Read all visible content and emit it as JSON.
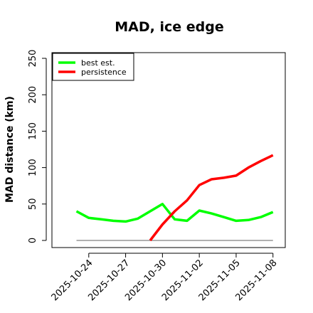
{
  "chart_data": {
    "type": "line",
    "title": "MAD, ice edge",
    "xlabel": "",
    "ylabel": "MAD distance (km)",
    "ylim": [
      0,
      250
    ],
    "yticks": [
      0,
      50,
      100,
      150,
      200,
      250
    ],
    "xlim": [
      "2025-10-21",
      "2025-11-09"
    ],
    "xticks": [
      "2025-10-24",
      "2025-10-27",
      "2025-10-30",
      "2025-11-02",
      "2025-11-05",
      "2025-11-08"
    ],
    "legend_position": "top-left",
    "series": [
      {
        "name": "best est.",
        "color": "#00ff00",
        "x": [
          "2025-10-23",
          "2025-10-24",
          "2025-10-25",
          "2025-10-26",
          "2025-10-27",
          "2025-10-28",
          "2025-10-29",
          "2025-10-30",
          "2025-10-31",
          "2025-11-01",
          "2025-11-02",
          "2025-11-03",
          "2025-11-04",
          "2025-11-05",
          "2025-11-06",
          "2025-11-07",
          "2025-11-08"
        ],
        "values": [
          40,
          31,
          29,
          27,
          26,
          30,
          40,
          50,
          29,
          27,
          41,
          37,
          32,
          27,
          28,
          32,
          39
        ]
      },
      {
        "name": "persistence",
        "color": "#ff0000",
        "x": [
          "2025-10-29",
          "2025-10-30",
          "2025-10-31",
          "2025-11-01",
          "2025-11-02",
          "2025-11-03",
          "2025-11-04",
          "2025-11-05",
          "2025-11-06",
          "2025-11-07",
          "2025-11-08"
        ],
        "values": [
          0,
          22,
          40,
          55,
          76,
          84,
          86,
          89,
          100,
          109,
          117
        ]
      }
    ],
    "reference_line": {
      "color": "#808080",
      "x": [
        "2025-10-23",
        "2025-11-08"
      ],
      "value": 0
    }
  }
}
